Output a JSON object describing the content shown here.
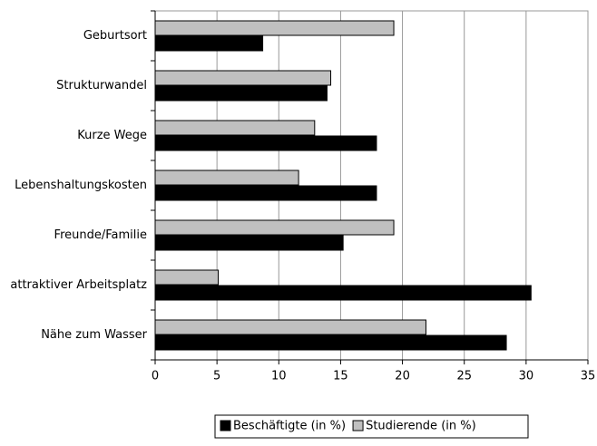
{
  "chart_data": {
    "type": "hbar",
    "categories": [
      "Geburtsort",
      "Strukturwandel",
      "Kurze Wege",
      "Lebenshaltungskosten",
      "Freunde/Familie",
      "attraktiver Arbeitsplatz",
      "Nähe zum Wasser"
    ],
    "series": [
      {
        "name": "Studierende (in %)",
        "color": "#c0c0c0",
        "values": [
          19.3,
          14.2,
          12.9,
          11.6,
          19.3,
          5.1,
          21.9
        ]
      },
      {
        "name": "Beschäftigte (in %)",
        "color": "#000000",
        "values": [
          8.7,
          13.9,
          17.9,
          17.9,
          15.2,
          30.4,
          28.4
        ]
      }
    ],
    "legend_order": [
      1,
      0
    ],
    "xlim": [
      0,
      35
    ],
    "xticks": [
      0,
      5,
      10,
      15,
      20,
      25,
      30,
      35
    ],
    "grid": true
  }
}
